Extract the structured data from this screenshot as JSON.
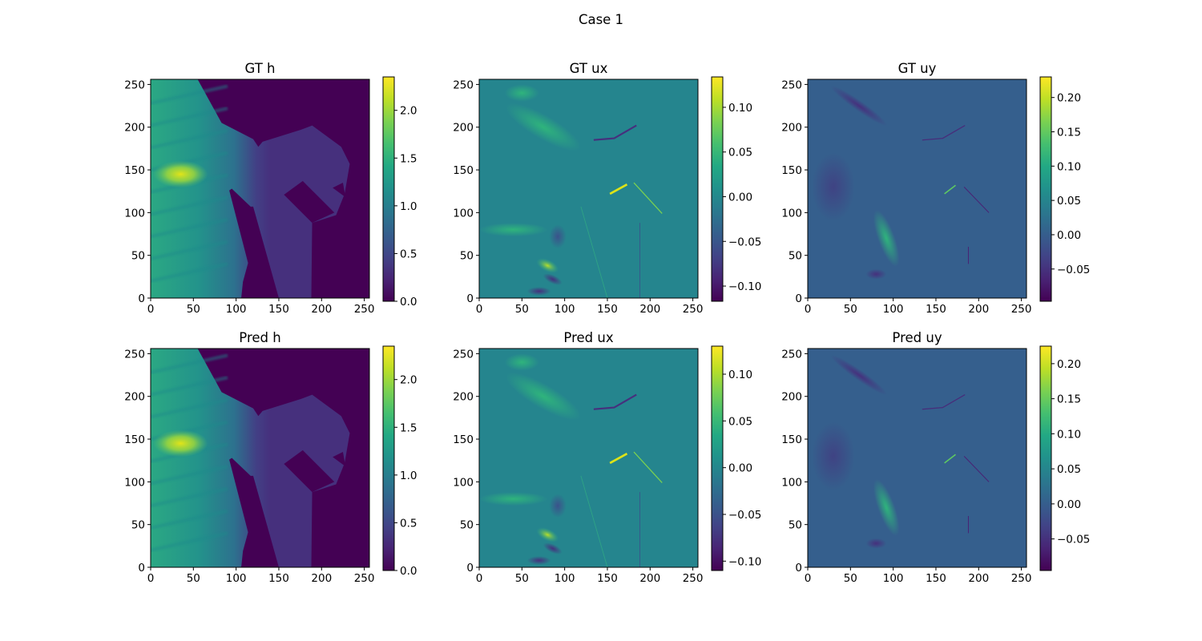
{
  "suptitle": "Case 1",
  "chart_data": [
    {
      "type": "heatmap",
      "title": "GT h",
      "variable": "h",
      "source": "GT",
      "xlim": [
        0,
        256
      ],
      "ylim": [
        0,
        256
      ],
      "xticks": [
        0,
        50,
        100,
        150,
        200,
        250
      ],
      "yticks": [
        0,
        50,
        100,
        150,
        200,
        250
      ],
      "colormap": "viridis",
      "vmin": 0.0,
      "vmax": 2.35,
      "cbar_ticks": [
        0.0,
        0.5,
        1.0,
        1.5,
        2.0
      ],
      "cbar_labels": [
        "0.0",
        "0.5",
        "1.0",
        "1.5",
        "2.0"
      ]
    },
    {
      "type": "heatmap",
      "title": "GT ux",
      "variable": "ux",
      "source": "GT",
      "xlim": [
        0,
        256
      ],
      "ylim": [
        0,
        256
      ],
      "xticks": [
        0,
        50,
        100,
        150,
        200,
        250
      ],
      "yticks": [
        0,
        50,
        100,
        150,
        200,
        250
      ],
      "colormap": "viridis",
      "vmin": -0.117,
      "vmax": 0.134,
      "cbar_ticks": [
        -0.1,
        -0.05,
        0.0,
        0.05,
        0.1
      ],
      "cbar_labels": [
        "−0.10",
        "−0.05",
        "0.00",
        "0.05",
        "0.10"
      ]
    },
    {
      "type": "heatmap",
      "title": "GT uy",
      "variable": "uy",
      "source": "GT",
      "xlim": [
        0,
        256
      ],
      "ylim": [
        0,
        256
      ],
      "xticks": [
        0,
        50,
        100,
        150,
        200,
        250
      ],
      "yticks": [
        0,
        50,
        100,
        150,
        200,
        250
      ],
      "colormap": "viridis",
      "vmin": -0.097,
      "vmax": 0.23,
      "cbar_ticks": [
        -0.05,
        0.0,
        0.05,
        0.1,
        0.15,
        0.2
      ],
      "cbar_labels": [
        "−0.05",
        "0.00",
        "0.05",
        "0.10",
        "0.15",
        "0.20"
      ]
    },
    {
      "type": "heatmap",
      "title": "Pred h",
      "variable": "h",
      "source": "Pred",
      "xlim": [
        0,
        256
      ],
      "ylim": [
        0,
        256
      ],
      "xticks": [
        0,
        50,
        100,
        150,
        200,
        250
      ],
      "yticks": [
        0,
        50,
        100,
        150,
        200,
        250
      ],
      "colormap": "viridis",
      "vmin": 0.0,
      "vmax": 2.35,
      "cbar_ticks": [
        0.0,
        0.5,
        1.0,
        1.5,
        2.0
      ],
      "cbar_labels": [
        "0.0",
        "0.5",
        "1.0",
        "1.5",
        "2.0"
      ]
    },
    {
      "type": "heatmap",
      "title": "Pred ux",
      "variable": "ux",
      "source": "Pred",
      "xlim": [
        0,
        256
      ],
      "ylim": [
        0,
        256
      ],
      "xticks": [
        0,
        50,
        100,
        150,
        200,
        250
      ],
      "yticks": [
        0,
        50,
        100,
        150,
        200,
        250
      ],
      "colormap": "viridis",
      "vmin": -0.11,
      "vmax": 0.13,
      "cbar_ticks": [
        -0.1,
        -0.05,
        0.0,
        0.05,
        0.1
      ],
      "cbar_labels": [
        "−0.10",
        "−0.05",
        "0.00",
        "0.05",
        "0.10"
      ]
    },
    {
      "type": "heatmap",
      "title": "Pred uy",
      "variable": "uy",
      "source": "Pred",
      "xlim": [
        0,
        256
      ],
      "ylim": [
        0,
        256
      ],
      "xticks": [
        0,
        50,
        100,
        150,
        200,
        250
      ],
      "yticks": [
        0,
        50,
        100,
        150,
        200,
        250
      ],
      "colormap": "viridis",
      "vmin": -0.095,
      "vmax": 0.225,
      "cbar_ticks": [
        -0.05,
        0.0,
        0.05,
        0.1,
        0.15,
        0.2
      ],
      "cbar_labels": [
        "−0.05",
        "0.00",
        "0.05",
        "0.10",
        "0.15",
        "0.20"
      ]
    }
  ]
}
